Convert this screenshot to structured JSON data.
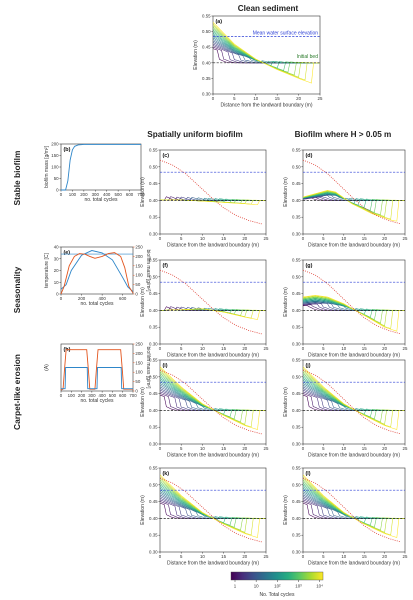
{
  "headers": {
    "clean_sediment": "Clean sediment",
    "spatially_uniform": "Spatially uniform biofilm",
    "biofilm_where": "Biofilm where H > 0.05 m"
  },
  "row_labels": {
    "stable": "Stable biofilm",
    "seasonality": "Seasonality",
    "carpet": "Carpet-like erosion"
  },
  "colors": {
    "mean_water": "#2b3fd6",
    "initial_bed": "#222222",
    "red_dotted": "#e0453a",
    "biofilm_blue": "#2e86c9",
    "temperature_orange": "#e2541d",
    "viridis": [
      "#440154",
      "#472d7b",
      "#3b528b",
      "#2c728e",
      "#21918c",
      "#28ae80",
      "#5ec962",
      "#addc30",
      "#fde725"
    ]
  },
  "colorbar": {
    "ticks": [
      "1",
      "10",
      "10²",
      "10³",
      "10⁴"
    ],
    "label": "No. Total cycles"
  },
  "chart_data": [
    {
      "id": "a",
      "type": "line",
      "panel_label": "(a)",
      "xlabel": "Distance from the landward boundary (m)",
      "ylabel": "Elevation (m)",
      "xlim": [
        0,
        25
      ],
      "ylim": [
        0.3,
        0.55
      ],
      "xticks": [
        0,
        5,
        10,
        15,
        20,
        25
      ],
      "yticks": [
        0.3,
        0.35,
        0.4,
        0.45,
        0.5,
        0.55
      ],
      "reference_lines": [
        {
          "name": "Mean water surface elevation",
          "y": 0.484,
          "style": "dashed",
          "color": "#2b3fd6"
        },
        {
          "name": "Initial bed",
          "y": 0.4,
          "style": "dashed",
          "color": "#222222"
        }
      ],
      "profile_family": {
        "final": {
          "x": [
            0,
            5,
            10,
            15,
            20,
            25
          ],
          "y": [
            0.53,
            0.46,
            0.412,
            0.378,
            0.35,
            0.325
          ]
        },
        "count": 18
      }
    },
    {
      "id": "b",
      "type": "line",
      "panel_label": "(b)",
      "xlabel": "no. total cycles",
      "ylabel": "biofilm mass [g/m²]",
      "xlim": [
        0,
        700
      ],
      "ylim": [
        0,
        200
      ],
      "xticks": [
        0,
        100,
        200,
        300,
        400,
        500,
        600,
        700
      ],
      "yticks": [
        0,
        50,
        100,
        150,
        200
      ],
      "series": [
        {
          "name": "biofilm mass",
          "x": [
            0,
            40,
            60,
            80,
            100,
            120,
            150,
            200,
            700
          ],
          "y": [
            0,
            0,
            40,
            130,
            175,
            190,
            196,
            198,
            198
          ]
        }
      ]
    },
    {
      "id": "c",
      "type": "line",
      "panel_label": "(c)",
      "xlabel": "Distance from the landward boundary (m)",
      "ylabel": "Elevation (m)",
      "xlim": [
        0,
        25
      ],
      "ylim": [
        0.3,
        0.55
      ],
      "xticks": [
        0,
        5,
        10,
        15,
        20,
        25
      ],
      "yticks": [
        0.3,
        0.35,
        0.4,
        0.45,
        0.5,
        0.55
      ],
      "reference_lines": [
        {
          "y": 0.484,
          "style": "dashed",
          "color": "#2b3fd6"
        },
        {
          "y": 0.4,
          "style": "dashed",
          "color": "#222222"
        }
      ],
      "red_dotted": {
        "x": [
          0,
          3,
          6,
          9,
          12,
          15,
          18,
          21,
          24
        ],
        "y": [
          0.52,
          0.505,
          0.48,
          0.445,
          0.41,
          0.378,
          0.355,
          0.34,
          0.33
        ]
      },
      "profile_family": {
        "final": {
          "x": [
            0,
            5,
            10,
            15,
            20,
            25
          ],
          "y": [
            0.401,
            0.401,
            0.398,
            0.394,
            0.39,
            0.385
          ]
        },
        "count": 18
      }
    },
    {
      "id": "d",
      "type": "line",
      "panel_label": "(d)",
      "xlabel": "Distance from the landward boundary (m)",
      "ylabel": "Elevation (m)",
      "xlim": [
        0,
        25
      ],
      "ylim": [
        0.3,
        0.55
      ],
      "xticks": [
        0,
        5,
        10,
        15,
        20,
        25
      ],
      "yticks": [
        0.3,
        0.35,
        0.4,
        0.45,
        0.5,
        0.55
      ],
      "reference_lines": [
        {
          "y": 0.484,
          "style": "dashed",
          "color": "#2b3fd6"
        },
        {
          "y": 0.4,
          "style": "dashed",
          "color": "#222222"
        }
      ],
      "red_dotted": {
        "x": [
          0,
          3,
          6,
          9,
          12,
          15,
          18,
          21,
          24
        ],
        "y": [
          0.52,
          0.505,
          0.48,
          0.445,
          0.41,
          0.378,
          0.355,
          0.34,
          0.33
        ]
      },
      "profile_family": {
        "final": {
          "x": [
            0,
            3,
            6,
            8,
            12,
            17,
            22,
            25
          ],
          "y": [
            0.41,
            0.42,
            0.43,
            0.425,
            0.39,
            0.36,
            0.34,
            0.335
          ]
        },
        "count": 18
      }
    },
    {
      "id": "e",
      "type": "line",
      "panel_label": "(e)",
      "xlabel": "no. total cycles",
      "ylabel": "temperature [C]",
      "ylabel_right": "biofilm mass [g/m²]",
      "xlim": [
        0,
        700
      ],
      "ylim": [
        0,
        40
      ],
      "ylim_right": [
        0,
        250
      ],
      "xticks": [
        0,
        200,
        400,
        600
      ],
      "yticks": [
        0,
        10,
        20,
        30,
        40
      ],
      "yticks_right": [
        0,
        50,
        100,
        150,
        200,
        250
      ],
      "reference_lines": [
        {
          "y": 34,
          "style": "solid",
          "color": "#2e86c9"
        }
      ],
      "series": [
        {
          "name": "temperature",
          "x": [
            0,
            50,
            100,
            200,
            300,
            400,
            500,
            600,
            650,
            700
          ],
          "y": [
            4,
            8,
            20,
            33,
            37,
            35,
            29,
            14,
            6,
            2
          ]
        },
        {
          "name": "biofilm mass",
          "x": [
            0,
            30,
            80,
            130,
            180,
            230,
            280,
            330,
            400,
            460,
            520,
            580,
            620,
            660,
            700
          ],
          "y": [
            0,
            40,
            150,
            200,
            215,
            212,
            200,
            190,
            200,
            215,
            220,
            200,
            140,
            40,
            5
          ]
        }
      ]
    },
    {
      "id": "f",
      "type": "line",
      "panel_label": "(f)",
      "xlabel": "Distance from the landward boundary (m)",
      "ylabel": "Elevation (m)",
      "xlim": [
        0,
        25
      ],
      "ylim": [
        0.3,
        0.55
      ],
      "xticks": [
        0,
        5,
        10,
        15,
        20,
        25
      ],
      "yticks": [
        0.3,
        0.35,
        0.4,
        0.45,
        0.5,
        0.55
      ],
      "reference_lines": [
        {
          "y": 0.484,
          "style": "dashed",
          "color": "#2b3fd6"
        },
        {
          "y": 0.4,
          "style": "dashed",
          "color": "#222222"
        }
      ],
      "red_dotted": {
        "x": [
          0,
          3,
          6,
          9,
          12,
          15,
          18,
          21,
          24
        ],
        "y": [
          0.52,
          0.505,
          0.48,
          0.445,
          0.41,
          0.378,
          0.355,
          0.34,
          0.33
        ]
      },
      "profile_family": {
        "final": {
          "x": [
            0,
            5,
            10,
            15,
            20,
            25
          ],
          "y": [
            0.4,
            0.402,
            0.405,
            0.395,
            0.38,
            0.368
          ]
        },
        "count": 18
      }
    },
    {
      "id": "g",
      "type": "line",
      "panel_label": "(g)",
      "xlabel": "Distance from the landward boundary (m)",
      "ylabel": "Elevation (m)",
      "xlim": [
        0,
        25
      ],
      "ylim": [
        0.3,
        0.55
      ],
      "xticks": [
        0,
        5,
        10,
        15,
        20,
        25
      ],
      "yticks": [
        0.3,
        0.35,
        0.4,
        0.45,
        0.5,
        0.55
      ],
      "reference_lines": [
        {
          "y": 0.484,
          "style": "dashed",
          "color": "#2b3fd6"
        },
        {
          "y": 0.4,
          "style": "dashed",
          "color": "#222222"
        }
      ],
      "red_dotted": {
        "x": [
          0,
          3,
          6,
          9,
          12,
          15,
          18,
          21,
          24
        ],
        "y": [
          0.52,
          0.505,
          0.48,
          0.445,
          0.41,
          0.378,
          0.355,
          0.34,
          0.33
        ]
      },
      "profile_family": {
        "final": {
          "x": [
            0,
            3,
            6,
            10,
            15,
            20,
            25
          ],
          "y": [
            0.44,
            0.445,
            0.44,
            0.42,
            0.385,
            0.35,
            0.33
          ]
        },
        "count": 18
      }
    },
    {
      "id": "h",
      "type": "line",
      "panel_label": "(h)",
      "xlabel": "no. total cycles",
      "ylabel": "(A)",
      "ylabel_right": "biofilm mass [g/m²]",
      "xlim": [
        0,
        700
      ],
      "ylim": [
        0,
        1.0
      ],
      "ylim_right": [
        0,
        250
      ],
      "xticks": [
        0,
        100,
        200,
        300,
        400,
        500,
        600,
        700
      ],
      "yticks_right": [
        0,
        50,
        100,
        150,
        200,
        250
      ],
      "series": [
        {
          "name": "biofilm mass",
          "x": [
            0,
            20,
            35,
            50,
            250,
            265,
            280,
            330,
            345,
            360,
            580,
            595,
            610,
            700
          ],
          "y": [
            5,
            10,
            120,
            220,
            220,
            120,
            10,
            10,
            120,
            220,
            220,
            120,
            10,
            10
          ]
        },
        {
          "name": "step",
          "x": [
            0,
            40,
            45,
            255,
            260,
            350,
            355,
            585,
            590,
            700
          ],
          "y": [
            0.05,
            0.05,
            0.5,
            0.5,
            0.05,
            0.05,
            0.5,
            0.5,
            0.05,
            0.05
          ]
        }
      ]
    },
    {
      "id": "i",
      "type": "line",
      "panel_label": "(i)",
      "xlabel": "Distance from the landward boundary (m)",
      "ylabel": "Elevation (m)",
      "xlim": [
        0,
        25
      ],
      "ylim": [
        0.3,
        0.55
      ],
      "xticks": [
        0,
        5,
        10,
        15,
        20,
        25
      ],
      "yticks": [
        0.3,
        0.35,
        0.4,
        0.45,
        0.5,
        0.55
      ],
      "reference_lines": [
        {
          "y": 0.484,
          "style": "dashed",
          "color": "#2b3fd6"
        },
        {
          "y": 0.4,
          "style": "dashed",
          "color": "#222222"
        }
      ],
      "red_dotted": {
        "x": [
          0,
          3,
          6,
          9,
          12,
          15,
          18,
          21,
          24
        ],
        "y": [
          0.52,
          0.505,
          0.48,
          0.445,
          0.41,
          0.378,
          0.355,
          0.34,
          0.33
        ]
      },
      "profile_family": {
        "final": {
          "x": [
            0,
            5,
            10,
            15,
            20,
            25
          ],
          "y": [
            0.53,
            0.47,
            0.42,
            0.385,
            0.355,
            0.335
          ]
        },
        "count": 18
      }
    },
    {
      "id": "j",
      "type": "line",
      "panel_label": "(j)",
      "xlabel": "Distance from the landward boundary (m)",
      "ylabel": "Elevation (m)",
      "xlim": [
        0,
        25
      ],
      "ylim": [
        0.3,
        0.55
      ],
      "xticks": [
        0,
        5,
        10,
        15,
        20,
        25
      ],
      "yticks": [
        0.3,
        0.35,
        0.4,
        0.45,
        0.5,
        0.55
      ],
      "reference_lines": [
        {
          "y": 0.484,
          "style": "dashed",
          "color": "#2b3fd6"
        },
        {
          "y": 0.4,
          "style": "dashed",
          "color": "#222222"
        }
      ],
      "red_dotted": {
        "x": [
          0,
          3,
          6,
          9,
          12,
          15,
          18,
          21,
          24
        ],
        "y": [
          0.52,
          0.505,
          0.48,
          0.445,
          0.41,
          0.378,
          0.355,
          0.34,
          0.33
        ]
      },
      "profile_family": {
        "final": {
          "x": [
            0,
            5,
            10,
            15,
            20,
            25
          ],
          "y": [
            0.53,
            0.47,
            0.42,
            0.385,
            0.355,
            0.335
          ]
        },
        "count": 18
      }
    },
    {
      "id": "k",
      "type": "line",
      "panel_label": "(k)",
      "xlabel": "Distance from the landward boundary (m)",
      "ylabel": "Elevation (m)",
      "xlim": [
        0,
        25
      ],
      "ylim": [
        0.3,
        0.55
      ],
      "xticks": [
        0,
        5,
        10,
        15,
        20,
        25
      ],
      "yticks": [
        0.3,
        0.35,
        0.4,
        0.45,
        0.5,
        0.55
      ],
      "reference_lines": [
        {
          "y": 0.484,
          "style": "dashed",
          "color": "#2b3fd6"
        },
        {
          "y": 0.4,
          "style": "dashed",
          "color": "#222222"
        }
      ],
      "red_dotted": {
        "x": [
          0,
          3,
          6,
          9,
          12,
          15,
          18,
          21,
          24
        ],
        "y": [
          0.52,
          0.505,
          0.48,
          0.445,
          0.41,
          0.378,
          0.355,
          0.34,
          0.33
        ]
      },
      "profile_family": {
        "final": {
          "x": [
            0,
            5,
            10,
            15,
            20,
            25
          ],
          "y": [
            0.53,
            0.468,
            0.418,
            0.383,
            0.355,
            0.335
          ]
        },
        "count": 18
      }
    },
    {
      "id": "l",
      "type": "line",
      "panel_label": "(l)",
      "xlabel": "Distance from the landward boundary (m)",
      "ylabel": "Elevation (m)",
      "xlim": [
        0,
        25
      ],
      "ylim": [
        0.3,
        0.55
      ],
      "xticks": [
        0,
        5,
        10,
        15,
        20,
        25
      ],
      "yticks": [
        0.3,
        0.35,
        0.4,
        0.45,
        0.5,
        0.55
      ],
      "reference_lines": [
        {
          "y": 0.484,
          "style": "dashed",
          "color": "#2b3fd6"
        },
        {
          "y": 0.4,
          "style": "dashed",
          "color": "#222222"
        }
      ],
      "red_dotted": {
        "x": [
          0,
          3,
          6,
          9,
          12,
          15,
          18,
          21,
          24
        ],
        "y": [
          0.52,
          0.505,
          0.48,
          0.445,
          0.41,
          0.378,
          0.355,
          0.34,
          0.33
        ]
      },
      "profile_family": {
        "final": {
          "x": [
            0,
            5,
            10,
            15,
            20,
            25
          ],
          "y": [
            0.53,
            0.468,
            0.418,
            0.383,
            0.355,
            0.335
          ]
        },
        "count": 18
      }
    }
  ]
}
